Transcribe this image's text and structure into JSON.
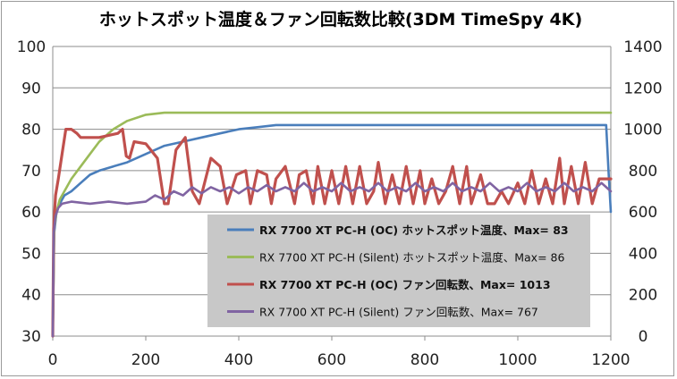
{
  "chart_data": {
    "type": "line",
    "title": "ホットスポット温度＆ファン回転数比較(3DM TimeSpy 4K)",
    "xlim": [
      0,
      1200
    ],
    "x_ticks": [
      "0",
      "200",
      "400",
      "600",
      "800",
      "1000",
      "1200"
    ],
    "ylim_left": [
      30,
      100
    ],
    "y_left_ticks": [
      "30",
      "40",
      "50",
      "60",
      "70",
      "80",
      "90",
      "100"
    ],
    "ylim_right": [
      0,
      1400
    ],
    "y_right_ticks": [
      "0",
      "200",
      "400",
      "600",
      "800",
      "1000",
      "1200",
      "1400"
    ],
    "grid": true,
    "legend_position": "bottom-right",
    "series": [
      {
        "name": "RX 7700 XT PC-H (OC) ホットスポット温度、Max= 83",
        "axis": "left",
        "color": "#4a7ebb",
        "bold": true,
        "x": [
          0,
          3,
          8,
          15,
          25,
          40,
          60,
          80,
          100,
          130,
          160,
          200,
          240,
          280,
          320,
          360,
          400,
          440,
          480,
          520,
          560,
          600,
          700,
          800,
          900,
          1000,
          1100,
          1190,
          1195,
          1200
        ],
        "y": [
          30,
          55,
          60,
          62,
          64,
          65,
          67,
          69,
          70,
          71,
          72,
          74,
          76,
          77,
          78,
          79,
          80,
          80.5,
          81,
          81,
          81,
          81,
          81,
          81,
          81,
          81,
          81,
          81,
          70,
          60
        ]
      },
      {
        "name": "RX 7700 XT PC-H (Silent) ホットスポット温度、Max= 86",
        "axis": "left",
        "color": "#9bbb59",
        "bold": false,
        "x": [
          0,
          3,
          8,
          15,
          25,
          40,
          60,
          80,
          100,
          130,
          160,
          200,
          240,
          280,
          320,
          400,
          500,
          600,
          700,
          800,
          900,
          1000,
          1100,
          1200
        ],
        "y": [
          30,
          56,
          60,
          63,
          65,
          68,
          71,
          74,
          77,
          80,
          82,
          83.5,
          84,
          84,
          84,
          84,
          84,
          84,
          84,
          84,
          84,
          84,
          84,
          84
        ]
      },
      {
        "name": "RX 7700 XT PC-H (OC) ファン回転数、Max= 1013",
        "axis": "right",
        "color": "#c0504d",
        "bold": true,
        "x": [
          0,
          2,
          6,
          12,
          20,
          28,
          40,
          52,
          60,
          100,
          140,
          150,
          158,
          165,
          175,
          200,
          225,
          240,
          248,
          265,
          285,
          300,
          315,
          340,
          360,
          375,
          395,
          415,
          425,
          440,
          460,
          470,
          480,
          500,
          520,
          530,
          545,
          560,
          570,
          585,
          600,
          615,
          630,
          645,
          660,
          675,
          690,
          700,
          715,
          730,
          745,
          760,
          775,
          790,
          800,
          815,
          830,
          845,
          860,
          875,
          890,
          900,
          920,
          935,
          950,
          965,
          980,
          1000,
          1015,
          1030,
          1045,
          1060,
          1075,
          1090,
          1100,
          1115,
          1130,
          1145,
          1160,
          1175,
          1190,
          1200
        ],
        "y": [
          0,
          520,
          680,
          760,
          880,
          1000,
          1000,
          980,
          960,
          960,
          980,
          1000,
          870,
          860,
          940,
          930,
          860,
          640,
          640,
          900,
          960,
          700,
          640,
          860,
          820,
          640,
          780,
          800,
          640,
          800,
          780,
          640,
          760,
          820,
          640,
          780,
          800,
          640,
          820,
          640,
          800,
          640,
          820,
          640,
          820,
          640,
          700,
          840,
          640,
          780,
          640,
          820,
          640,
          800,
          640,
          760,
          640,
          700,
          820,
          640,
          820,
          640,
          780,
          640,
          640,
          700,
          640,
          740,
          640,
          800,
          640,
          760,
          640,
          860,
          640,
          820,
          640,
          840,
          640,
          760,
          760,
          760
        ]
      },
      {
        "name": "RX 7700 XT PC-H (Silent) ファン回転数、Max= 767",
        "axis": "right",
        "color": "#8064a2",
        "bold": false,
        "x": [
          0,
          2,
          6,
          12,
          20,
          40,
          80,
          120,
          160,
          200,
          220,
          240,
          260,
          280,
          300,
          320,
          340,
          360,
          380,
          400,
          420,
          440,
          460,
          480,
          500,
          520,
          540,
          560,
          580,
          600,
          620,
          640,
          660,
          680,
          700,
          720,
          740,
          760,
          780,
          800,
          820,
          840,
          860,
          880,
          900,
          920,
          940,
          960,
          980,
          1000,
          1020,
          1040,
          1060,
          1080,
          1100,
          1120,
          1140,
          1160,
          1180,
          1200
        ],
        "y": [
          0,
          500,
          580,
          620,
          640,
          650,
          640,
          650,
          640,
          650,
          680,
          660,
          700,
          680,
          720,
          690,
          720,
          700,
          720,
          690,
          720,
          700,
          730,
          700,
          720,
          700,
          740,
          700,
          720,
          700,
          740,
          700,
          720,
          700,
          740,
          700,
          720,
          700,
          740,
          700,
          720,
          700,
          740,
          700,
          720,
          700,
          740,
          700,
          720,
          700,
          740,
          700,
          720,
          700,
          740,
          700,
          720,
          700,
          740,
          700
        ]
      }
    ]
  }
}
